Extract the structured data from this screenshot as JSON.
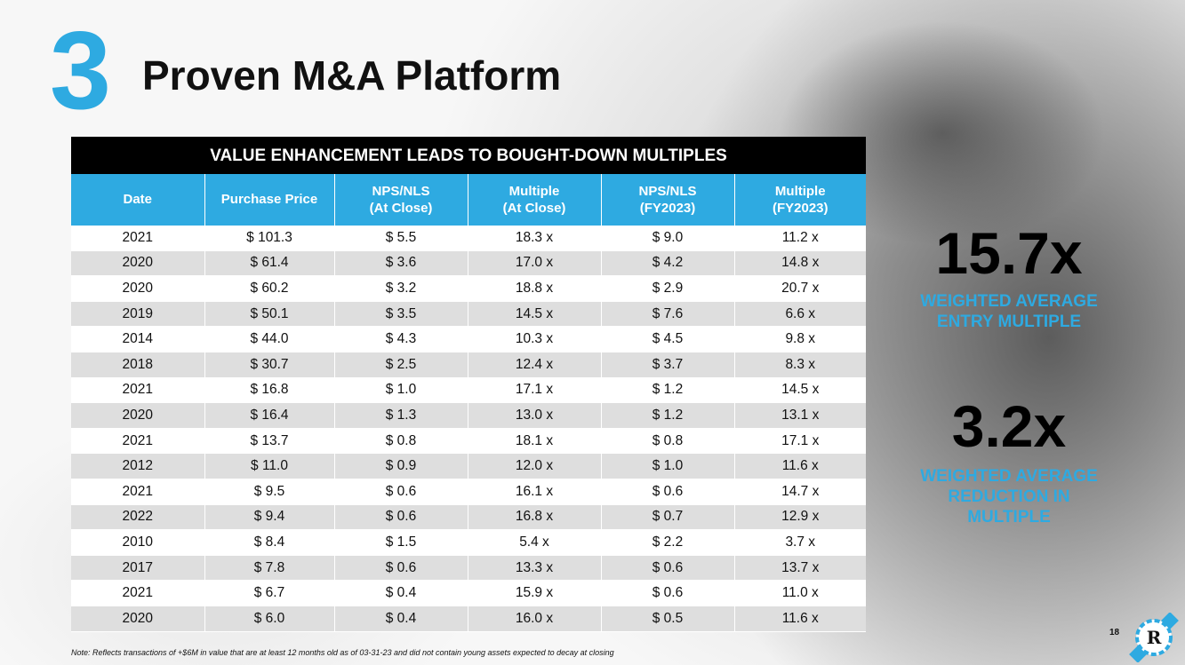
{
  "slide": {
    "number": "3",
    "title": "Proven M&A Platform",
    "page": "18",
    "note": "Note: Reflects transactions of +$6M in value that are at least 12 months old as of 03-31-23 and did not contain young assets expected to decay at closing"
  },
  "table": {
    "banner": "VALUE ENHANCEMENT LEADS TO BOUGHT-DOWN MULTIPLES",
    "headers": [
      [
        "Date"
      ],
      [
        "Purchase Price"
      ],
      [
        "NPS/NLS",
        "(At Close)"
      ],
      [
        "Multiple",
        "(At Close)"
      ],
      [
        "NPS/NLS",
        "(FY2023)"
      ],
      [
        "Multiple",
        "(FY2023)"
      ]
    ],
    "rows": [
      [
        "2021",
        "$ 101.3",
        "$ 5.5",
        "18.3 x",
        "$ 9.0",
        "11.2 x"
      ],
      [
        "2020",
        "$ 61.4",
        "$ 3.6",
        "17.0 x",
        "$ 4.2",
        "14.8 x"
      ],
      [
        "2020",
        "$ 60.2",
        "$ 3.2",
        "18.8 x",
        "$ 2.9",
        "20.7 x"
      ],
      [
        "2019",
        "$ 50.1",
        "$ 3.5",
        "14.5 x",
        "$ 7.6",
        "6.6 x"
      ],
      [
        "2014",
        "$ 44.0",
        "$ 4.3",
        "10.3 x",
        "$ 4.5",
        "9.8 x"
      ],
      [
        "2018",
        "$ 30.7",
        "$ 2.5",
        "12.4 x",
        "$ 3.7",
        "8.3 x"
      ],
      [
        "2021",
        "$ 16.8",
        "$ 1.0",
        "17.1 x",
        "$ 1.2",
        "14.5 x"
      ],
      [
        "2020",
        "$ 16.4",
        "$ 1.3",
        "13.0 x",
        "$ 1.2",
        "13.1 x"
      ],
      [
        "2021",
        "$ 13.7",
        "$ 0.8",
        "18.1 x",
        "$ 0.8",
        "17.1 x"
      ],
      [
        "2012",
        "$ 11.0",
        "$ 0.9",
        "12.0 x",
        "$ 1.0",
        "11.6 x"
      ],
      [
        "2021",
        "$ 9.5",
        "$ 0.6",
        "16.1 x",
        "$ 0.6",
        "14.7 x"
      ],
      [
        "2022",
        "$ 9.4",
        "$ 0.6",
        "16.8 x",
        "$ 0.7",
        "12.9 x"
      ],
      [
        "2010",
        "$ 8.4",
        "$ 1.5",
        "5.4 x",
        "$ 2.2",
        "3.7 x"
      ],
      [
        "2017",
        "$ 7.8",
        "$ 0.6",
        "13.3 x",
        "$ 0.6",
        "13.7 x"
      ],
      [
        "2021",
        "$ 6.7",
        "$ 0.4",
        "15.9 x",
        "$ 0.6",
        "11.0 x"
      ],
      [
        "2020",
        "$ 6.0",
        "$ 0.4",
        "16.0 x",
        "$ 0.5",
        "11.6 x"
      ]
    ]
  },
  "stats": [
    {
      "value": "15.7x",
      "label_lines": [
        "WEIGHTED AVERAGE",
        "ENTRY MULTIPLE"
      ]
    },
    {
      "value": "3.2x",
      "label_lines": [
        "WEIGHTED AVERAGE",
        "REDUCTION IN",
        "MULTIPLE"
      ]
    }
  ],
  "colors": {
    "accent": "#2eaae1",
    "banner": "#000000",
    "row_alt": "#dedede"
  },
  "icons": {
    "logo": "r-logo-icon"
  }
}
